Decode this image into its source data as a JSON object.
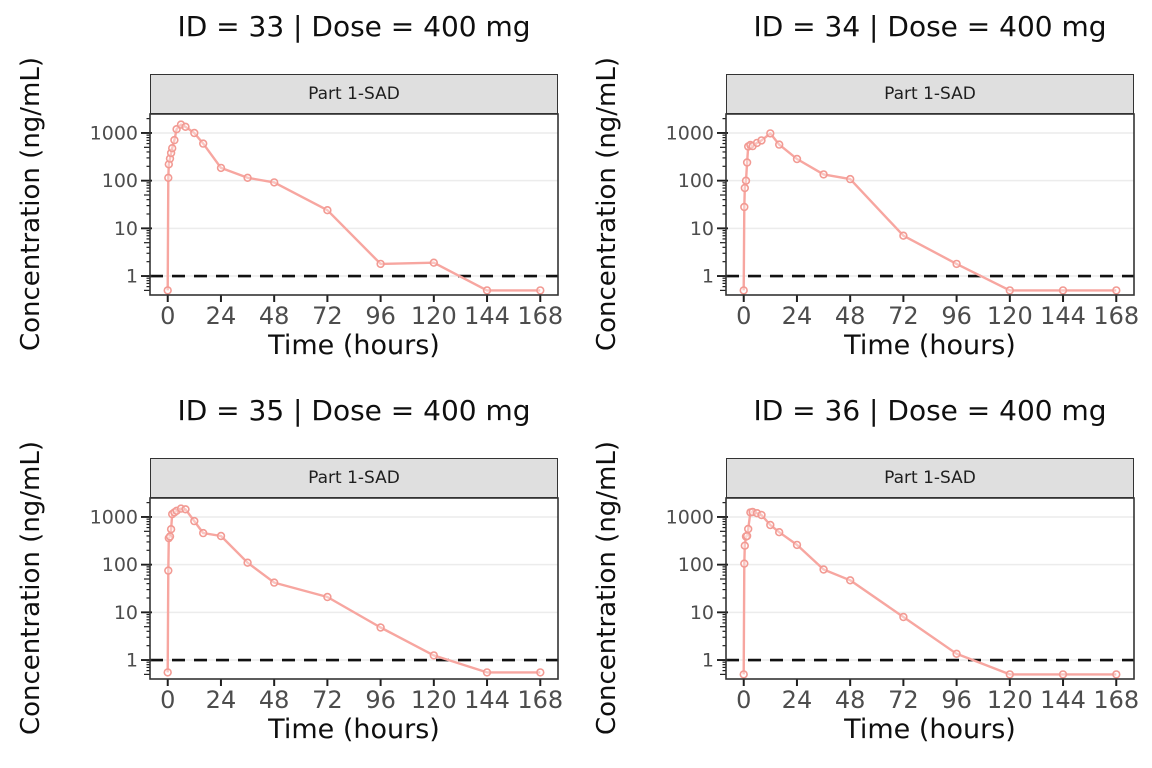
{
  "figure": {
    "background": "#ffffff",
    "rows": 2,
    "cols": 2
  },
  "style": {
    "line_color": "#F7A6A0",
    "point_stroke_color": "#F29A93",
    "point_fill_color": "#FFFFFF",
    "grid_color": "#ECECEC",
    "panel_border_color": "#333333",
    "strip_background": "#DFDFDF",
    "tick_color": "#1f1f1f",
    "tick_label_color": "#4d4d4d",
    "title_color": "#0f0f0f",
    "lloq_line_color": "#111111"
  },
  "chart_data": [
    {
      "type": "line",
      "id": 33,
      "title": "ID = 33 | Dose = 400 mg",
      "facet_label": "Part 1-SAD",
      "xlabel": "Time (hours)",
      "ylabel": "Concentration (ng/mL)",
      "x_scale": "linear",
      "y_scale": "log10",
      "xlim": [
        -8,
        176
      ],
      "ylim": [
        0.4,
        2500
      ],
      "x_ticks": [
        "0",
        "24",
        "48",
        "72",
        "96",
        "120",
        "144",
        "168"
      ],
      "x_tick_values": [
        0,
        24,
        48,
        72,
        96,
        120,
        144,
        168
      ],
      "y_ticks": [
        "1",
        "10",
        "100",
        "1000"
      ],
      "y_tick_values": [
        1,
        10,
        100,
        1000
      ],
      "grid": "major-horizontal",
      "lloq_line_y": 1,
      "x": [
        0,
        0.25,
        0.5,
        1,
        1.5,
        2,
        3,
        4,
        6,
        8,
        12,
        16,
        24,
        36,
        48,
        72,
        96,
        120,
        144,
        168
      ],
      "y": [
        0.5,
        115,
        220,
        290,
        380,
        480,
        710,
        1200,
        1500,
        1350,
        1000,
        600,
        185,
        115,
        92,
        24,
        1.8,
        1.9,
        0.5,
        0.5
      ]
    },
    {
      "type": "line",
      "id": 34,
      "title": "ID = 34 | Dose = 400 mg",
      "facet_label": "Part 1-SAD",
      "xlabel": "Time (hours)",
      "ylabel": "Concentration (ng/mL)",
      "x_scale": "linear",
      "y_scale": "log10",
      "xlim": [
        -8,
        176
      ],
      "ylim": [
        0.4,
        2500
      ],
      "x_ticks": [
        "0",
        "24",
        "48",
        "72",
        "96",
        "120",
        "144",
        "168"
      ],
      "x_tick_values": [
        0,
        24,
        48,
        72,
        96,
        120,
        144,
        168
      ],
      "y_ticks": [
        "1",
        "10",
        "100",
        "1000"
      ],
      "y_tick_values": [
        1,
        10,
        100,
        1000
      ],
      "grid": "major-horizontal",
      "lloq_line_y": 1,
      "x": [
        0,
        0.25,
        0.5,
        1,
        1.5,
        2,
        3,
        4,
        6,
        8,
        12,
        16,
        24,
        36,
        48,
        72,
        96,
        120,
        144,
        168
      ],
      "y": [
        0.5,
        28,
        70,
        100,
        240,
        520,
        560,
        530,
        620,
        700,
        980,
        570,
        285,
        135,
        108,
        7,
        1.8,
        0.5,
        0.5,
        0.5
      ]
    },
    {
      "type": "line",
      "id": 35,
      "title": "ID = 35 | Dose = 400 mg",
      "facet_label": "Part 1-SAD",
      "xlabel": "Time (hours)",
      "ylabel": "Concentration (ng/mL)",
      "x_scale": "linear",
      "y_scale": "log10",
      "xlim": [
        -8,
        176
      ],
      "ylim": [
        0.4,
        2500
      ],
      "x_ticks": [
        "0",
        "24",
        "48",
        "72",
        "96",
        "120",
        "144",
        "168"
      ],
      "x_tick_values": [
        0,
        24,
        48,
        72,
        96,
        120,
        144,
        168
      ],
      "y_ticks": [
        "1",
        "10",
        "100",
        "1000"
      ],
      "y_tick_values": [
        1,
        10,
        100,
        1000
      ],
      "grid": "major-horizontal",
      "lloq_line_y": 1,
      "x": [
        0,
        0.25,
        0.5,
        1,
        1.5,
        2,
        3,
        4,
        6,
        8,
        12,
        16,
        24,
        36,
        48,
        72,
        96,
        120,
        144,
        168
      ],
      "y": [
        0.55,
        75,
        360,
        390,
        555,
        1150,
        1250,
        1350,
        1500,
        1450,
        820,
        460,
        400,
        110,
        42,
        21,
        4.8,
        1.25,
        0.55,
        0.55
      ]
    },
    {
      "type": "line",
      "id": 36,
      "title": "ID = 36 | Dose = 400 mg",
      "facet_label": "Part 1-SAD",
      "xlabel": "Time (hours)",
      "ylabel": "Concentration (ng/mL)",
      "x_scale": "linear",
      "y_scale": "log10",
      "xlim": [
        -8,
        176
      ],
      "ylim": [
        0.4,
        2500
      ],
      "x_ticks": [
        "0",
        "24",
        "48",
        "72",
        "96",
        "120",
        "144",
        "168"
      ],
      "x_tick_values": [
        0,
        24,
        48,
        72,
        96,
        120,
        144,
        168
      ],
      "y_ticks": [
        "1",
        "10",
        "100",
        "1000"
      ],
      "y_tick_values": [
        1,
        10,
        100,
        1000
      ],
      "grid": "major-horizontal",
      "lloq_line_y": 1,
      "x": [
        0,
        0.25,
        0.5,
        1,
        1.5,
        2,
        3,
        4,
        6,
        8,
        12,
        16,
        24,
        36,
        48,
        72,
        96,
        120,
        144,
        168
      ],
      "y": [
        0.5,
        105,
        250,
        390,
        400,
        560,
        1250,
        1270,
        1200,
        1100,
        680,
        480,
        260,
        79,
        47,
        8,
        1.35,
        0.5,
        0.5,
        0.5
      ]
    }
  ]
}
